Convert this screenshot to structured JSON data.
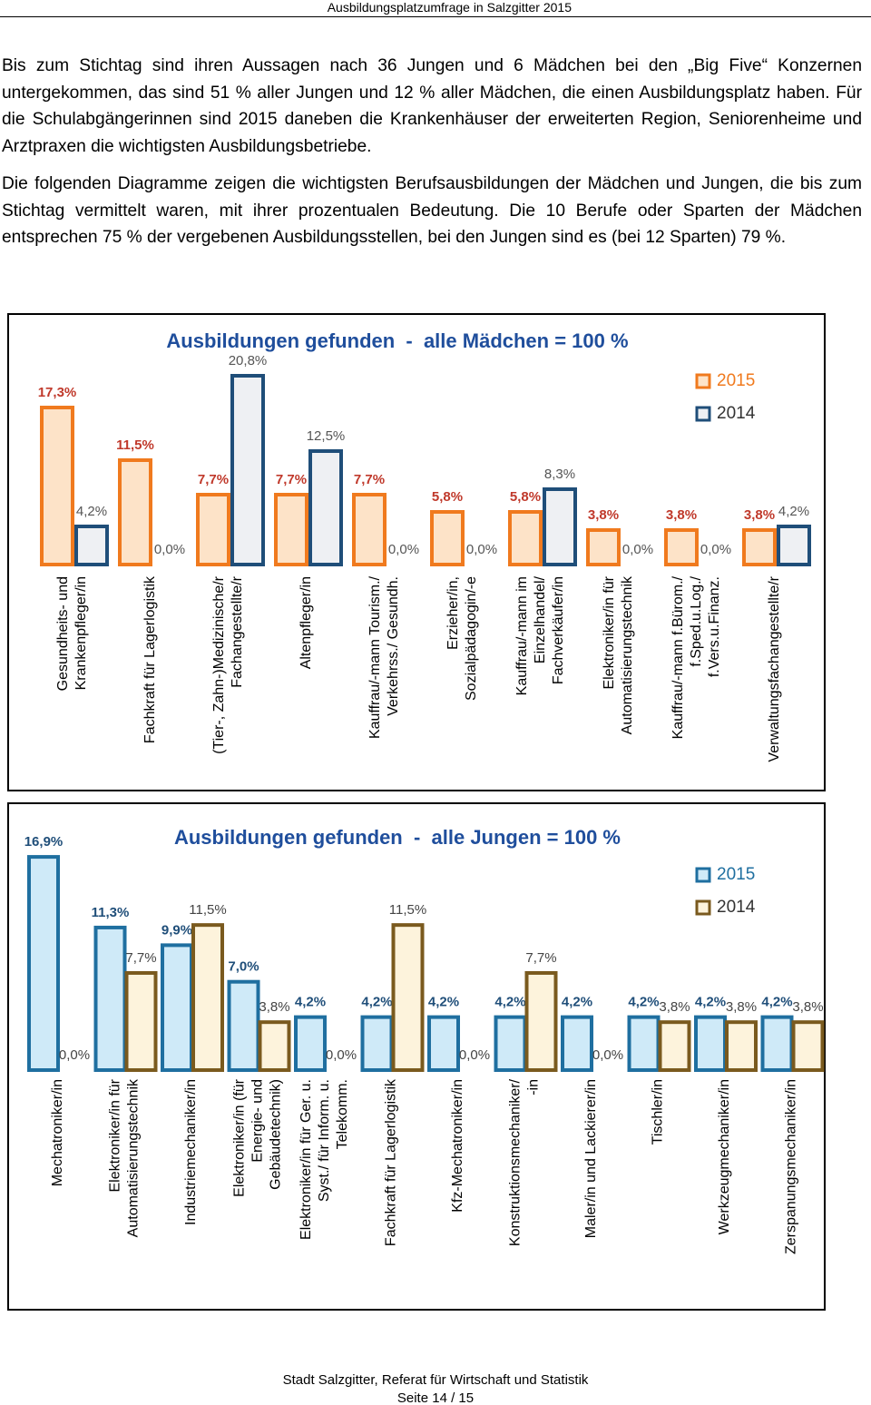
{
  "header": "Ausbildungsplatzumfrage in Salzgitter 2015",
  "paragraphs": [
    "Bis zum Stichtag sind ihren Aussagen nach 36 Jungen und 6 Mädchen bei den „Big Five“ Konzernen untergekommen, das sind 51 % aller Jungen und 12 % aller Mädchen, die einen Ausbildungsplatz haben. Für die Schulabgängerinnen sind 2015 daneben die Krankenhäuser der erweiterten Region, Seniorenheime und Arztpraxen die wichtigsten Ausbildungsbetriebe.",
    "Die folgenden Diagramme zeigen die wichtigsten Berufsausbildungen der Mädchen und Jungen, die bis zum Stichtag vermittelt waren, mit ihrer prozentualen Bedeutung. Die 10 Berufe oder Sparten der Mädchen entsprechen 75 % der vergebenen Ausbildungsstellen, bei den Jungen sind es (bei 12 Sparten) 79 %."
  ],
  "chart_data": [
    {
      "type": "bar",
      "title": "Ausbildungen gefunden  -  alle Mädchen = 100 %",
      "legend": "top-right",
      "categories": [
        [
          "Gesundheits- und",
          "Krankenpfleger/in"
        ],
        [
          "Fachkraft für Lagerlogistik"
        ],
        [
          "(Tier-, Zahn-)Medizinische/r",
          "Fachangestellte/r"
        ],
        [
          "Altenpfleger/in"
        ],
        [
          "Kauffrau/-mann Tourism./",
          "Verkehrss./ Gesundh."
        ],
        [
          "Erzieher/in,",
          "Sozialpädagogin/-e"
        ],
        [
          "Kauffrau/-mann im",
          "Einzelhandel/",
          "Fachverkäufer/in"
        ],
        [
          "Elektroniker/in für",
          "Automatisierungstechnik"
        ],
        [
          "Kauffrau/-mann f.Bürom./",
          "f.Sped.u.Log./",
          "f.Vers.u.Finanz."
        ],
        [
          "Verwaltungsfachangestellte/r"
        ]
      ],
      "series": [
        {
          "name": "2015",
          "color": "#f07a1e",
          "values": [
            17.3,
            11.5,
            7.7,
            7.7,
            7.7,
            5.8,
            5.8,
            3.8,
            3.8,
            3.8
          ],
          "value_labels": [
            "17,3%",
            "11,5%",
            "7,7%",
            "7,7%",
            "7,7%",
            "5,8%",
            "5,8%",
            "3,8%",
            "3,8%",
            "3,8%"
          ]
        },
        {
          "name": "2014",
          "color": "#1f4e79",
          "values": [
            4.2,
            0.0,
            20.8,
            12.5,
            0.0,
            0.0,
            8.3,
            0.0,
            0.0,
            4.2
          ],
          "value_labels": [
            "4,2%",
            "0,0%",
            "20,8%",
            "12,5%",
            "0,0%",
            "0,0%",
            "8,3%",
            "0,0%",
            "0,0%",
            "4,2%"
          ]
        }
      ]
    },
    {
      "type": "bar",
      "title": "Ausbildungen gefunden  -  alle Jungen = 100 %",
      "legend": "top-right",
      "categories": [
        [
          "Mechatroniker/in"
        ],
        [
          "Elektroniker/in für",
          "Automatisierungstechnik"
        ],
        [
          "Industriemechaniker/in"
        ],
        [
          "Elektroniker/in (für",
          "Energie- und",
          "Gebäudetechnik)"
        ],
        [
          "Elektroniker/in für Ger. u.",
          "Syst./ für Inform. u.",
          "Telekomm."
        ],
        [
          "Fachkraft für Lagerlogistik"
        ],
        [
          "Kfz-Mechatroniker/in"
        ],
        [
          "Konstruktionsmechaniker/",
          "-in"
        ],
        [
          "Maler/in und Lackierer/in"
        ],
        [
          "Tischler/in"
        ],
        [
          "Werkzeugmechaniker/in"
        ],
        [
          "Zerspanungsmechaniker/in"
        ]
      ],
      "series": [
        {
          "name": "2015",
          "color": "#1f6fa0",
          "values": [
            16.9,
            11.3,
            9.9,
            7.0,
            4.2,
            4.2,
            4.2,
            4.2,
            4.2,
            4.2,
            4.2,
            4.2
          ],
          "value_labels": [
            "16,9%",
            "11,3%",
            "9,9%",
            "7,0%",
            "4,2%",
            "4,2%",
            "4,2%",
            "4,2%",
            "4,2%",
            "4,2%",
            "4,2%",
            "4,2%"
          ]
        },
        {
          "name": "2014",
          "color": "#7a5a1e",
          "values": [
            0.0,
            7.7,
            11.5,
            3.8,
            0.0,
            11.5,
            0.0,
            7.7,
            0.0,
            3.8,
            3.8,
            3.8
          ],
          "value_labels": [
            "0,0%",
            "7,7%",
            "11,5%",
            "3,8%",
            "0,0%",
            "11,5%",
            "0,0%",
            "7,7%",
            "0,0%",
            "3,8%",
            "3,8%",
            "3,8%"
          ]
        }
      ]
    }
  ],
  "footer": {
    "source": "Stadt Salzgitter, Referat für Wirtschaft und Statistik",
    "page": "Seite 14 / 15"
  }
}
